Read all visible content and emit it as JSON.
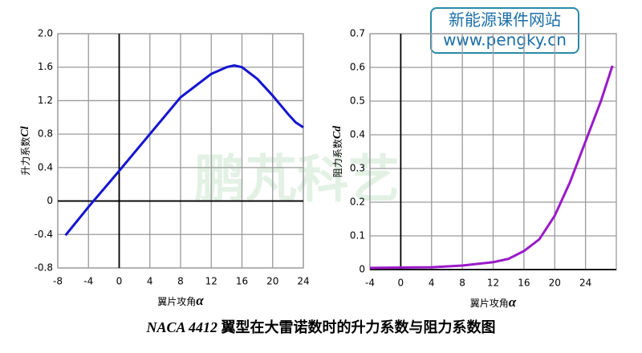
{
  "badge": {
    "line1": "新能源课件网站",
    "line2": "www.pengky.cn"
  },
  "watermark": "鹏芃科艺",
  "caption": {
    "code": "NACA 4412",
    "text": "翼型在大雷诺数时的升力系数与阻力系数图"
  },
  "chart_data": [
    {
      "type": "line",
      "ylabel": "升力系数",
      "ylabel_symbol": "Cl",
      "xlabel": "翼片攻角",
      "xlabel_symbol": "α",
      "x": [
        -7,
        -4,
        0,
        4,
        8,
        12,
        14,
        15,
        16,
        18,
        20,
        22,
        23,
        24
      ],
      "values": [
        -0.41,
        -0.07,
        0.36,
        0.8,
        1.24,
        1.52,
        1.6,
        1.62,
        1.6,
        1.46,
        1.26,
        1.04,
        0.94,
        0.88
      ],
      "color": "#1414d2",
      "xlim": [
        -8,
        24
      ],
      "xticks": [
        -8,
        -4,
        0,
        4,
        8,
        12,
        16,
        20,
        24
      ],
      "ylim": [
        -0.8,
        2.0
      ],
      "yticks": [
        -0.8,
        -0.4,
        0,
        0.4,
        0.8,
        1.2,
        1.6,
        {
          "value": 2.0,
          "label": "2.0"
        }
      ],
      "grid": true
    },
    {
      "type": "line",
      "ylabel": "阻力系数",
      "ylabel_symbol": "Cd",
      "xlabel": "翼片攻角",
      "xlabel_symbol": "α",
      "x": [
        -4,
        0,
        4,
        8,
        12,
        14,
        16,
        18,
        20,
        22,
        24,
        26,
        27.5
      ],
      "values": [
        0.005,
        0.006,
        0.007,
        0.012,
        0.022,
        0.032,
        0.055,
        0.09,
        0.16,
        0.26,
        0.38,
        0.5,
        0.605
      ],
      "color": "#9a1ac8",
      "xlim": [
        -4,
        28
      ],
      "xticks": [
        -4,
        0,
        4,
        8,
        12,
        16,
        20,
        24
      ],
      "ylim": [
        0,
        0.7
      ],
      "yticks": [
        0,
        0.1,
        0.2,
        0.3,
        0.4,
        0.5,
        0.6,
        0.7
      ],
      "grid": true
    }
  ]
}
